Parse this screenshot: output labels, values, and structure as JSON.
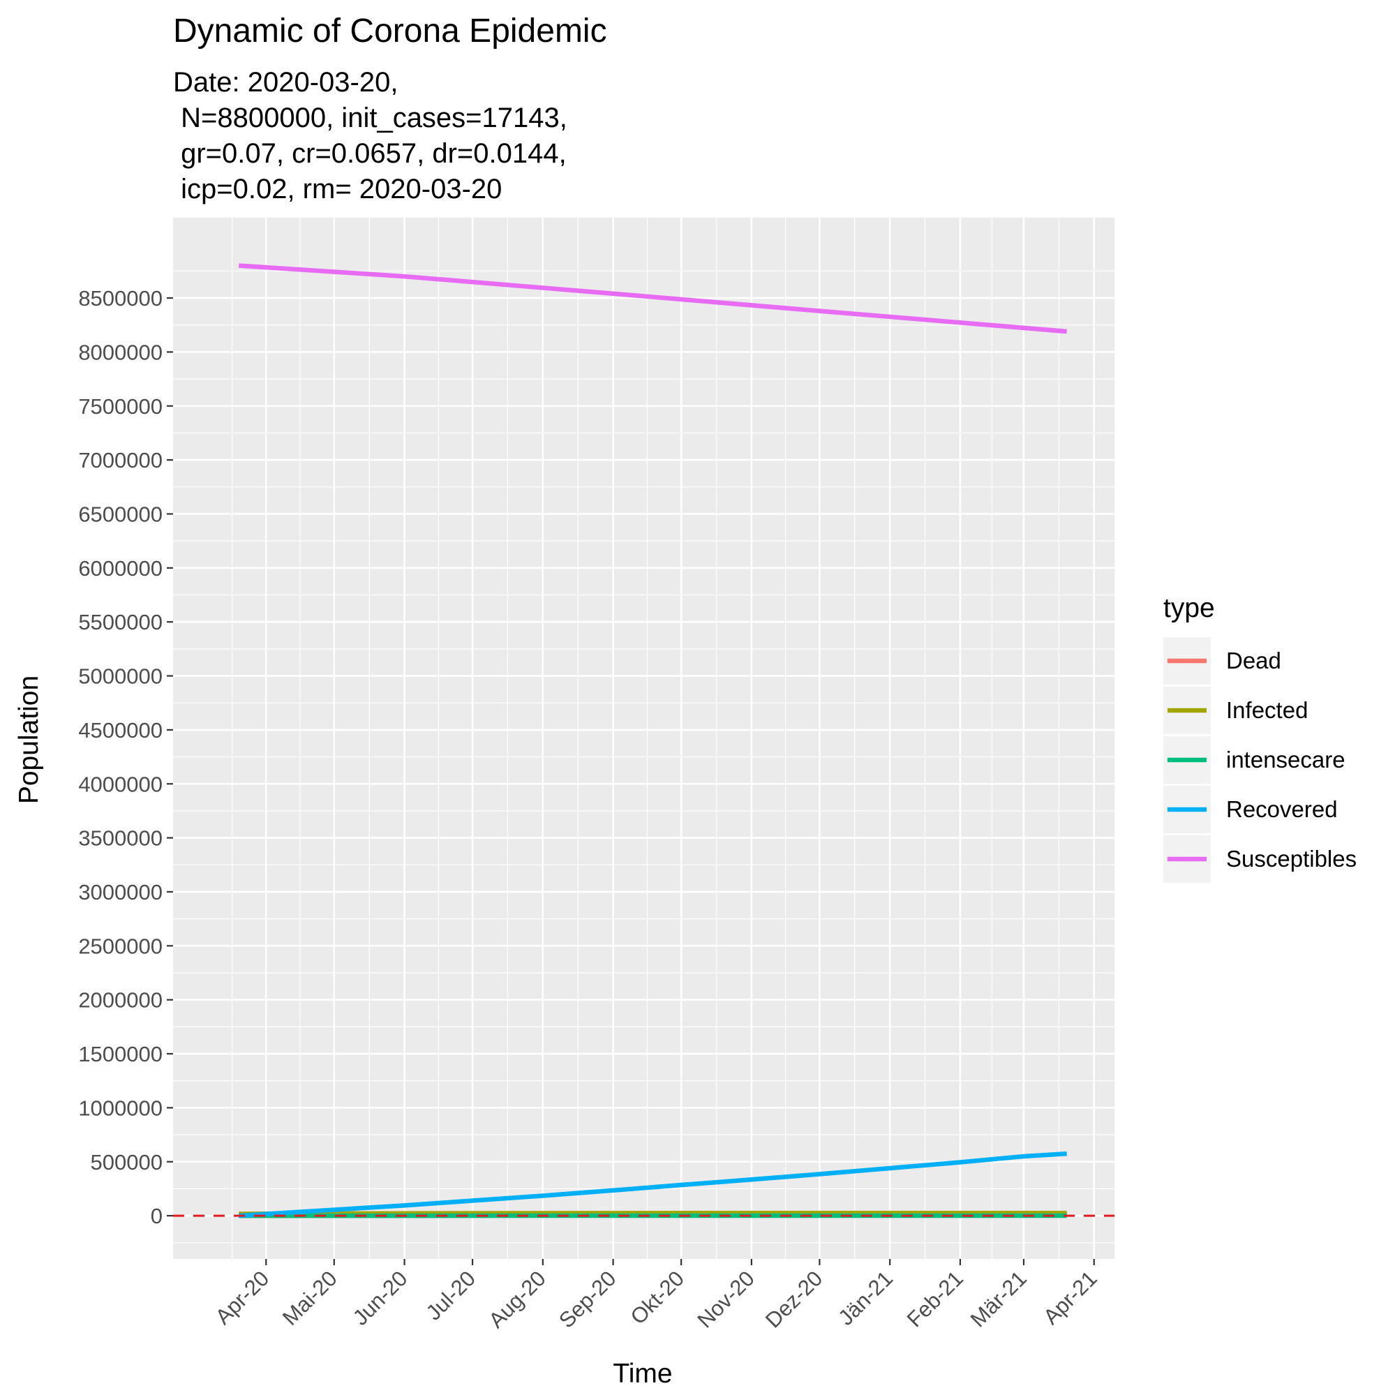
{
  "chart_data": {
    "type": "line",
    "title": "Dynamic of Corona Epidemic",
    "subtitle_lines": [
      "Date: 2020-03-20,",
      " N=8800000, init_cases=17143,",
      " gr=0.07, cr=0.0657, dr=0.0144,",
      " icp=0.02, rm= 2020-03-20"
    ],
    "xlabel": "Time",
    "ylabel": "Population",
    "xlim": [
      "2020-02-20",
      "2021-04-10"
    ],
    "ylim": [
      -400000,
      9250000
    ],
    "x_ticks": [
      {
        "date": "2020-04-01",
        "label": "Apr-20"
      },
      {
        "date": "2020-05-01",
        "label": "Mai-20"
      },
      {
        "date": "2020-06-01",
        "label": "Jun-20"
      },
      {
        "date": "2020-07-01",
        "label": "Jul-20"
      },
      {
        "date": "2020-08-01",
        "label": "Aug-20"
      },
      {
        "date": "2020-09-01",
        "label": "Sep-20"
      },
      {
        "date": "2020-10-01",
        "label": "Okt-20"
      },
      {
        "date": "2020-11-01",
        "label": "Nov-20"
      },
      {
        "date": "2020-12-01",
        "label": "Dez-20"
      },
      {
        "date": "2021-01-01",
        "label": "Jän-21"
      },
      {
        "date": "2021-02-01",
        "label": "Feb-21"
      },
      {
        "date": "2021-03-01",
        "label": "Mär-21"
      },
      {
        "date": "2021-04-01",
        "label": "Apr-21"
      }
    ],
    "y_ticks": [
      0,
      500000,
      1000000,
      1500000,
      2000000,
      2500000,
      3000000,
      3500000,
      4000000,
      4500000,
      5000000,
      5500000,
      6000000,
      6500000,
      7000000,
      7500000,
      8000000,
      8500000
    ],
    "grid": true,
    "legend": {
      "title": "type",
      "placement": "right"
    },
    "hline": {
      "y": 0,
      "color": "#e41a1c",
      "style": "dashed"
    },
    "series": [
      {
        "name": "Dead",
        "color": "#F8766D",
        "x": [
          "2020-03-20",
          "2020-06-01",
          "2020-09-01",
          "2020-12-01",
          "2021-03-20"
        ],
        "y": [
          0,
          1500,
          3500,
          5500,
          8000
        ]
      },
      {
        "name": "Infected",
        "color": "#A3A500",
        "x": [
          "2020-03-20",
          "2020-04-20",
          "2020-06-01",
          "2020-09-01",
          "2020-12-01",
          "2021-03-20"
        ],
        "y": [
          17143,
          20000,
          22000,
          24000,
          25000,
          25000
        ]
      },
      {
        "name": "intensecare",
        "color": "#00BF7D",
        "x": [
          "2020-03-20",
          "2020-06-01",
          "2020-09-01",
          "2020-12-01",
          "2021-03-20"
        ],
        "y": [
          0,
          400,
          450,
          500,
          500
        ]
      },
      {
        "name": "Recovered",
        "color": "#00B0F6",
        "x": [
          "2020-03-20",
          "2020-05-01",
          "2020-06-01",
          "2020-07-01",
          "2020-08-01",
          "2020-09-01",
          "2020-10-01",
          "2020-11-01",
          "2020-12-01",
          "2021-01-01",
          "2021-02-01",
          "2021-03-01",
          "2021-03-20"
        ],
        "y": [
          0,
          55000,
          95000,
          140000,
          185000,
          235000,
          285000,
          335000,
          385000,
          440000,
          495000,
          550000,
          575000
        ]
      },
      {
        "name": "Susceptibles",
        "color": "#E76BF3",
        "x": [
          "2020-03-20",
          "2020-06-01",
          "2020-09-01",
          "2020-12-01",
          "2021-03-20"
        ],
        "y": [
          8800000,
          8700000,
          8540000,
          8380000,
          8190000
        ]
      }
    ]
  }
}
